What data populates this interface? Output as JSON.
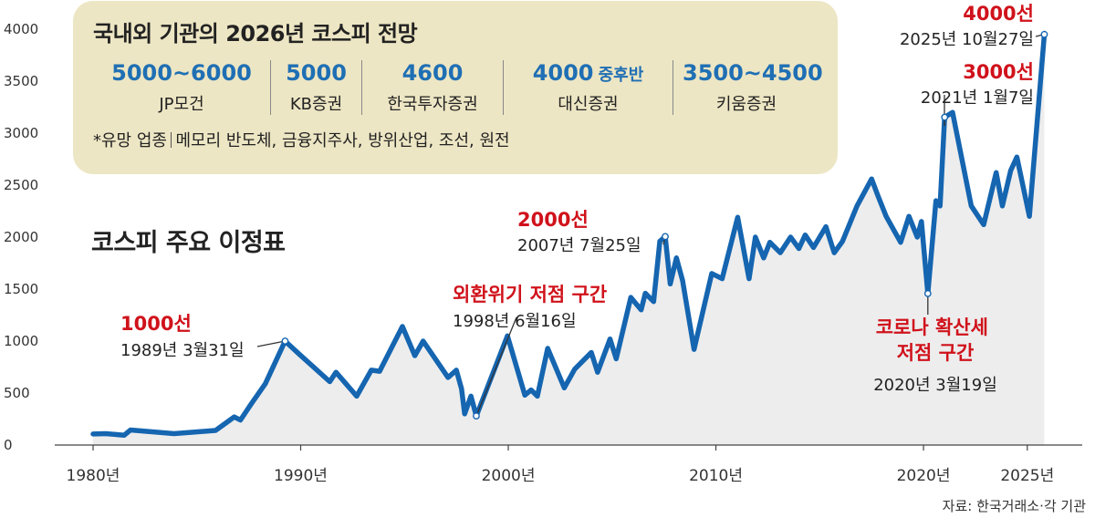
{
  "infobox": {
    "title": "국내외 기관의 2026년 코스피 전망",
    "forecasts": [
      {
        "value": "5000~6000",
        "suffix": "",
        "institution": "JP모건"
      },
      {
        "value": "5000",
        "suffix": "",
        "institution": "KB증권"
      },
      {
        "value": "4600",
        "suffix": "",
        "institution": "한국투자증권"
      },
      {
        "value": "4000",
        "suffix": "중후반",
        "institution": "대신증권"
      },
      {
        "value": "3500~4500",
        "suffix": "",
        "institution": "키움증권"
      }
    ],
    "note_label": "*유망 업종",
    "note_text": "메모리 반도체, 금융지주사, 방위산업, 조선, 원전"
  },
  "source": "자료: 한국거래소·각 기관",
  "colors": {
    "line": "#1565b0",
    "area": "#ededed",
    "box_bg": "#ede6c4",
    "accent_blue": "#1f6fb4",
    "accent_red": "#d0121b"
  },
  "chart_data": {
    "type": "line",
    "title": "코스피 주요 이정표",
    "xlabel": "",
    "ylabel": "",
    "xlim": [
      1980,
      2025.8
    ],
    "ylim": [
      0,
      4000
    ],
    "y_ticks": [
      0,
      500,
      1000,
      1500,
      2000,
      2500,
      3000,
      3500,
      4000
    ],
    "x_ticks": [
      {
        "value": 1980,
        "label": "1980년"
      },
      {
        "value": 1990,
        "label": "1990년"
      },
      {
        "value": 2000,
        "label": "2000년"
      },
      {
        "value": 2010,
        "label": "2010년"
      },
      {
        "value": 2020,
        "label": "2020년"
      },
      {
        "value": 2025,
        "label": "2025년"
      }
    ],
    "grid": false,
    "series": [
      {
        "name": "",
        "x": [
          1980.0,
          1980.6,
          1981.5,
          1981.8,
          1983.9,
          1985.9,
          1986.8,
          1987.1,
          1987.6,
          1988.3,
          1989.25,
          1989.9,
          1991.4,
          1991.7,
          1992.7,
          1993.4,
          1993.8,
          1994.9,
          1995.5,
          1995.9,
          1997.1,
          1997.5,
          1997.75,
          1997.9,
          1998.2,
          1998.46,
          1999.96,
          2000.8,
          2001.1,
          2001.4,
          2001.9,
          2002.7,
          2003.2,
          2004.0,
          2004.3,
          2004.9,
          2005.2,
          2005.9,
          2006.4,
          2006.6,
          2007.0,
          2007.3,
          2007.56,
          2007.8,
          2008.1,
          2008.4,
          2008.95,
          2009.8,
          2010.3,
          2011.05,
          2011.6,
          2011.9,
          2012.3,
          2012.6,
          2013.1,
          2013.6,
          2014.0,
          2014.3,
          2014.7,
          2015.3,
          2015.7,
          2016.1,
          2016.8,
          2017.5,
          2017.8,
          2018.2,
          2018.9,
          2019.3,
          2019.7,
          2019.9,
          2020.21,
          2020.6,
          2020.8,
          2021.02,
          2021.4,
          2022.3,
          2022.9,
          2023.5,
          2023.8,
          2024.2,
          2024.5,
          2025.1,
          2025.82
        ],
        "values": [
          106,
          110,
          95,
          145,
          110,
          140,
          270,
          240,
          390,
          590,
          1000,
          880,
          610,
          700,
          470,
          720,
          710,
          1140,
          860,
          1000,
          650,
          720,
          540,
          300,
          470,
          280,
          1050,
          480,
          530,
          470,
          930,
          550,
          730,
          890,
          700,
          1020,
          830,
          1420,
          1300,
          1460,
          1380,
          1960,
          2005,
          1550,
          1800,
          1580,
          920,
          1650,
          1600,
          2190,
          1600,
          2000,
          1800,
          1950,
          1850,
          2000,
          1890,
          2020,
          1900,
          2100,
          1850,
          1960,
          2300,
          2560,
          2400,
          2200,
          1950,
          2200,
          2000,
          2150,
          1457,
          2350,
          2300,
          3153,
          3200,
          2300,
          2120,
          2620,
          2300,
          2640,
          2770,
          2200,
          3950
        ]
      }
    ],
    "annotations": [
      {
        "label": "1000선",
        "date": "1989년 3월31일",
        "x": 1989.25,
        "y": 1000
      },
      {
        "label": "외환위기 저점 구간",
        "date": "1998년 6월16일",
        "x": 1998.46,
        "y": 280
      },
      {
        "label": "2000선",
        "date": "2007년 7월25일",
        "x": 2007.56,
        "y": 2005
      },
      {
        "label": "코로나 확산세 저점 구간",
        "date": "2020년 3월19일",
        "x": 2020.21,
        "y": 1457
      },
      {
        "label": "3000선",
        "date": "2021년 1월7일",
        "x": 2021.02,
        "y": 3153
      },
      {
        "label": "4000선",
        "date": "2025년 10월27일",
        "x": 2025.82,
        "y": 3950
      }
    ]
  }
}
